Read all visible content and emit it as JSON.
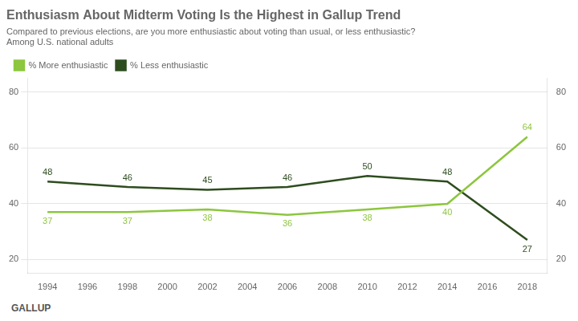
{
  "chart_data": {
    "type": "line",
    "title": "Enthusiasm About Midterm Voting Is the Highest in Gallup Trend",
    "subtitle": [
      "Compared to previous elections, are you more enthusiastic about voting than usual, or less enthusiastic?",
      "Among U.S. national adults"
    ],
    "footer": "GALLUP",
    "x": [
      1994,
      1998,
      2002,
      2006,
      2010,
      2014,
      2018
    ],
    "series": [
      {
        "name": "% More enthusiastic",
        "color": "#8dc63f",
        "values": [
          37,
          37,
          38,
          36,
          38,
          40,
          64
        ]
      },
      {
        "name": "% Less enthusiastic",
        "color": "#2e4d1e",
        "values": [
          48,
          46,
          45,
          46,
          50,
          48,
          27
        ]
      }
    ],
    "xlim": [
      1993,
      2019
    ],
    "xticks": [
      1994,
      1996,
      1998,
      2000,
      2002,
      2004,
      2006,
      2008,
      2010,
      2012,
      2014,
      2016,
      2018
    ],
    "ylim": [
      15,
      85
    ],
    "yticks": [
      20,
      40,
      60,
      80
    ],
    "y2lim": [
      15,
      85
    ],
    "y2ticks": [
      20,
      40,
      60,
      80
    ],
    "grid": true,
    "legend": "upper left",
    "data_labels": true
  }
}
